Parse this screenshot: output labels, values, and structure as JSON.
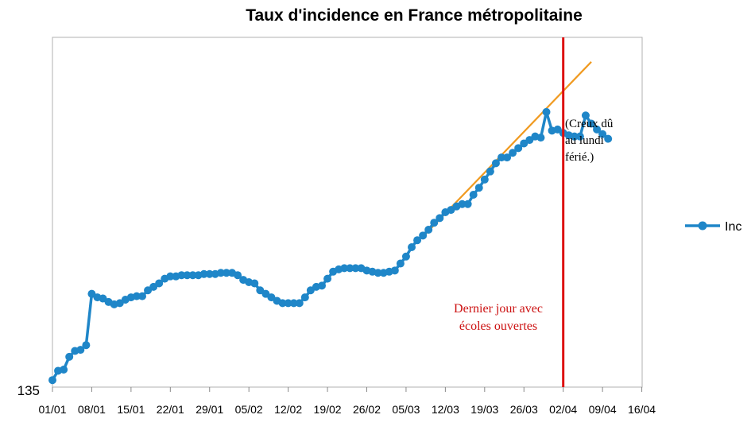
{
  "chart_data": {
    "type": "line",
    "title": "Taux d'incidence en France métropolitaine",
    "x_tick_labels": [
      "01/01",
      "08/01",
      "15/01",
      "22/01",
      "29/01",
      "05/02",
      "12/02",
      "19/02",
      "26/02",
      "05/03",
      "12/03",
      "19/03",
      "26/03",
      "02/04",
      "09/04",
      "16/04"
    ],
    "y_tick_labels": [
      "135"
    ],
    "ylim": [
      135,
      435
    ],
    "series": [
      {
        "name": "Inc",
        "color": "#1f86c8",
        "start_day": 0,
        "values": [
          141,
          149,
          150,
          161,
          166,
          167,
          171,
          215,
          212,
          211,
          208,
          206,
          207,
          210,
          212,
          213,
          213,
          218,
          221,
          224,
          228,
          230,
          230,
          231,
          231,
          231,
          231,
          232,
          232,
          232,
          233,
          233,
          233,
          231,
          227,
          225,
          224,
          218,
          215,
          212,
          209,
          207,
          207,
          207,
          207,
          212,
          218,
          221,
          222,
          228,
          234,
          236,
          237,
          237,
          237,
          237,
          235,
          234,
          233,
          233,
          234,
          235,
          241,
          247,
          255,
          261,
          265,
          270,
          276,
          280,
          285,
          287,
          290,
          292,
          292,
          300,
          306,
          313,
          320,
          327,
          332,
          332,
          336,
          340,
          344,
          347,
          350,
          349,
          371,
          355,
          356,
          353,
          351,
          350,
          350,
          368,
          361,
          356,
          352,
          348
        ]
      }
    ],
    "trend_line": {
      "color": "#f09a20",
      "start_day": 66,
      "start_value": 264,
      "end_day": 96,
      "end_value": 414
    },
    "vline": {
      "day": 91,
      "color": "#dd1111"
    },
    "annotations": [
      {
        "id": "last-school-day",
        "lines": [
          "Dernier jour avec",
          "écoles ouvertes"
        ]
      },
      {
        "id": "holiday-dip",
        "lines": [
          "(Creux dû",
          "au lundi",
          "férié.)"
        ]
      }
    ],
    "legend": {
      "position": "right",
      "label": "Inc"
    },
    "grid": false
  }
}
